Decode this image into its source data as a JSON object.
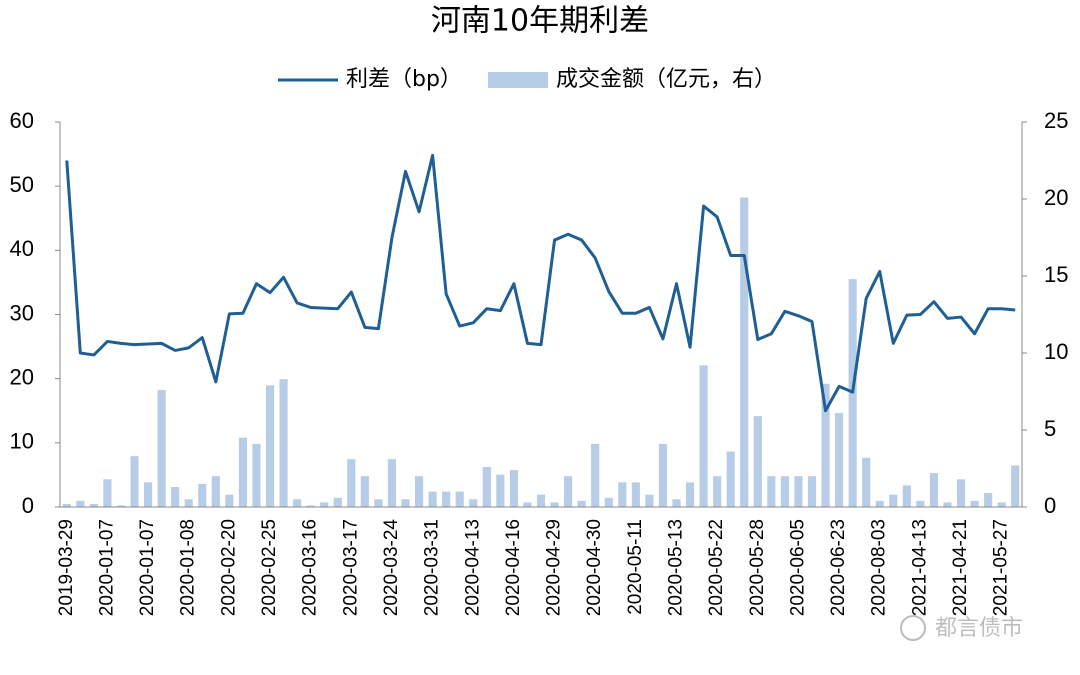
{
  "chart_data": {
    "type": "bar-line",
    "title": "河南10年期利差",
    "categories": [
      "2019-03-29",
      null,
      null,
      "2020-01-07",
      null,
      null,
      "2020-01-07",
      null,
      null,
      "2020-01-08",
      null,
      null,
      "2020-02-20",
      null,
      null,
      "2020-02-25",
      null,
      null,
      "2020-03-16",
      null,
      null,
      "2020-03-17",
      null,
      null,
      "2020-03-24",
      null,
      null,
      "2020-03-31",
      null,
      null,
      "2020-04-13",
      null,
      null,
      "2020-04-16",
      null,
      null,
      "2020-04-29",
      null,
      null,
      "2020-04-30",
      null,
      null,
      "2020-05-11",
      null,
      null,
      "2020-05-13",
      null,
      null,
      "2020-05-22",
      null,
      null,
      "2020-05-28",
      null,
      null,
      "2020-06-05",
      null,
      null,
      "2020-06-23",
      null,
      null,
      "2020-08-03",
      null,
      null,
      "2021-04-13",
      null,
      null,
      "2021-04-21",
      null,
      null,
      "2021-05-27",
      null
    ],
    "series": [
      {
        "name": "利差（bp）",
        "type": "line",
        "color": "#1f5f94",
        "values": [
          54,
          24,
          23.7,
          25.8,
          25.5,
          25.3,
          25.4,
          25.5,
          24.4,
          24.8,
          26.4,
          19.5,
          30.1,
          30.2,
          34.8,
          33.4,
          35.8,
          31.8,
          31.1,
          31.0,
          30.9,
          33.5,
          28.0,
          27.8,
          42.0,
          52.3,
          46.0,
          54.8,
          33.2,
          28.2,
          28.7,
          30.9,
          30.6,
          34.8,
          25.5,
          25.3,
          41.6,
          42.5,
          41.6,
          38.8,
          33.6,
          30.2,
          30.2,
          31.1,
          26.2,
          34.8,
          24.9,
          46.9,
          45.2,
          39.2,
          39.2,
          26.1,
          27.0,
          30.5,
          29.8,
          28.9,
          15.0,
          18.8,
          17.9,
          32.5,
          36.7,
          25.5,
          29.9,
          30.0,
          32.0,
          29.4,
          29.6,
          27.0,
          30.9,
          30.9,
          30.7
        ]
      },
      {
        "name": "成交金额（亿元，右）",
        "type": "bar",
        "axis": "y2",
        "color": "#b7cce6",
        "values": [
          0.2,
          0.4,
          0.2,
          1.8,
          0.1,
          3.3,
          1.6,
          7.6,
          1.3,
          0.5,
          1.5,
          2.0,
          0.8,
          4.5,
          4.1,
          7.9,
          8.3,
          0.5,
          0.1,
          0.3,
          0.6,
          3.1,
          2.0,
          0.5,
          3.1,
          0.5,
          2.0,
          1.0,
          1.0,
          1.0,
          0.5,
          2.6,
          2.1,
          2.4,
          0.3,
          0.8,
          0.3,
          2.0,
          0.4,
          4.1,
          0.6,
          1.6,
          1.6,
          0.8,
          4.1,
          0.5,
          1.6,
          9.2,
          2.0,
          3.6,
          20.1,
          5.9,
          2.0,
          2.0,
          2.0,
          2.0,
          8.0,
          6.1,
          14.8,
          3.2,
          0.4,
          0.8,
          1.4,
          0.4,
          2.2,
          0.3,
          1.8,
          0.4,
          0.9,
          0.3,
          2.7
        ]
      }
    ],
    "ylim": [
      0,
      60
    ],
    "yticks": [
      0,
      10,
      20,
      30,
      40,
      50,
      60
    ],
    "y2lim": [
      0,
      25
    ],
    "y2ticks": [
      0,
      5,
      10,
      15,
      20,
      25
    ],
    "legend": "top",
    "watermark": "都言债市"
  }
}
